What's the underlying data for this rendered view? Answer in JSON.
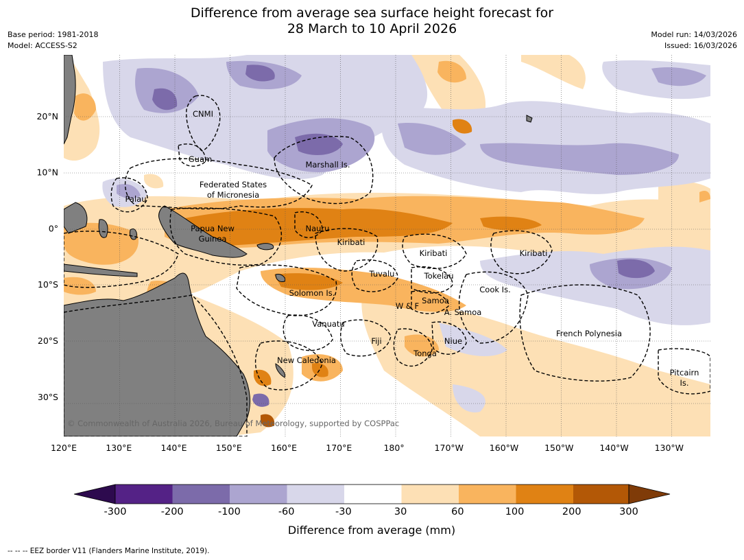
{
  "title": {
    "line1": "Difference from average sea surface height forecast for",
    "line2": "28 March to 10 April 2026"
  },
  "meta": {
    "base_period": "Base period: 1981-2018",
    "model": "Model: ACCESS-S2",
    "model_run": "Model run: 14/03/2026",
    "issued": "Issued: 16/03/2026"
  },
  "map": {
    "lon_labels": [
      "120°E",
      "130°E",
      "140°E",
      "150°E",
      "160°E",
      "170°E",
      "180°",
      "170°W",
      "160°W",
      "150°W",
      "140°W",
      "130°W"
    ],
    "lat_labels": [
      "20°N",
      "10°N",
      "0°",
      "10°S",
      "20°S",
      "30°S"
    ],
    "lon_values": [
      120,
      130,
      140,
      150,
      160,
      170,
      180,
      190,
      200,
      210,
      220,
      230
    ],
    "lat_values": [
      20,
      10,
      0,
      -10,
      -20,
      -30
    ],
    "extent": {
      "lon_min": 120,
      "lon_max": 237.5,
      "lat_max": 31,
      "lat_min": -37
    },
    "region_labels": {
      "cnmi": "CNMI",
      "guam": "Guam",
      "marshall": "Marshall Is.",
      "fsm_1": "Federated States",
      "fsm_2": "of Micronesia",
      "palau": "Palau",
      "png_1": "Papua New",
      "png_2": "Guinea",
      "nauru": "Nauru",
      "kiribati_west": "Kiribati",
      "kiribati_central": "Kiribati",
      "kiribati_east": "Kiribati",
      "tuvalu": "Tuvalu",
      "tokelau": "Tokelau",
      "cook": "Cook Is.",
      "solomon": "Solomon Is.",
      "samoa": "Samoa",
      "wf": "W & F",
      "amsamoa": "A. Samoa",
      "vanuatu": "Vanuatu",
      "fiji": "Fiji",
      "niue": "Niue",
      "tonga": "Tonga",
      "frpoly": "French Polynesia",
      "newcal": "New Caledonia",
      "pitcairn_1": "Pitcairn",
      "pitcairn_2": "Is."
    },
    "copyright": "© Commonwealth of Australia 2026, Bureau of Meteorology, supported by COSPPac"
  },
  "colorbar": {
    "ticks": [
      "-300",
      "-200",
      "-100",
      "-60",
      "-30",
      "30",
      "60",
      "100",
      "200",
      "300"
    ],
    "title": "Difference from average (mm)",
    "colors": {
      "below": "#2d0a4e",
      "c1": "#542286",
      "c2": "#7c6baa",
      "c3": "#aca5d0",
      "c4": "#d8d7ea",
      "c5": "#ffffff",
      "c6": "#fde0b5",
      "c7": "#f9b45e",
      "c8": "#e08214",
      "c9": "#b35806",
      "above": "#7f3b08"
    }
  },
  "footer": "--  --  -- EEZ border V11 (Flanders Marine Institute, 2019)."
}
